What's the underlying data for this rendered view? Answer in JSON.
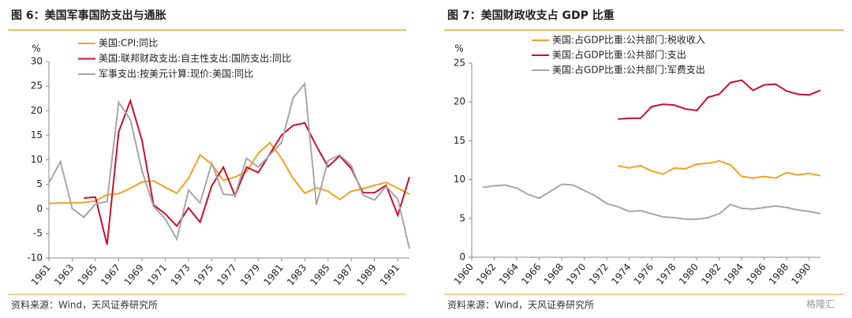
{
  "chart_data": [
    {
      "type": "line",
      "title": "图 6：美国军事国防支出与通胀",
      "y_unit": "%",
      "source": "资料来源：Wind，天风证券研究所",
      "x": [
        1961,
        1962,
        1963,
        1964,
        1965,
        1966,
        1967,
        1968,
        1969,
        1970,
        1971,
        1972,
        1973,
        1974,
        1975,
        1976,
        1977,
        1978,
        1979,
        1980,
        1981,
        1982,
        1983,
        1984,
        1985,
        1986,
        1987,
        1988,
        1989,
        1990,
        1991,
        1992
      ],
      "xlim": [
        1961,
        1992
      ],
      "xticks": [
        1961,
        1963,
        1965,
        1967,
        1969,
        1971,
        1973,
        1975,
        1977,
        1979,
        1981,
        1983,
        1985,
        1987,
        1989,
        1991
      ],
      "ylim": [
        -10,
        30
      ],
      "yticks": [
        -10,
        -5,
        0,
        5,
        10,
        15,
        20,
        25,
        30
      ],
      "legend": "top",
      "series": [
        {
          "name": "美国:CPI:同比",
          "color": "#f5a020",
          "values": [
            1.1,
            1.2,
            1.2,
            1.3,
            1.6,
            2.9,
            3.1,
            4.2,
            5.5,
            5.7,
            4.4,
            3.2,
            6.2,
            11.0,
            9.1,
            5.8,
            6.5,
            7.6,
            11.3,
            13.5,
            10.3,
            6.2,
            3.2,
            4.3,
            3.6,
            1.9,
            3.6,
            4.1,
            4.8,
            5.4,
            4.2,
            3.0
          ]
        },
        {
          "name": "美国:联邦财政支出:自主性支出:国防支出:同比",
          "color": "#c8102e",
          "values": [
            null,
            null,
            null,
            2.2,
            2.4,
            -7.3,
            15.7,
            22.0,
            14.0,
            0.8,
            -1.0,
            -3.5,
            0.2,
            -2.7,
            4.7,
            8.5,
            2.7,
            8.5,
            7.4,
            11.2,
            15.0,
            17.0,
            17.5,
            12.8,
            8.6,
            10.8,
            8.2,
            3.3,
            3.3,
            4.8,
            -1.3,
            6.5
          ]
        },
        {
          "name": "军事支出:按美元计算:现价:美国:同比",
          "color": "#a6a6a6",
          "values": [
            5.3,
            9.6,
            0.1,
            -1.7,
            1.0,
            1.5,
            21.7,
            18.2,
            7.8,
            0.5,
            -2.0,
            -6.2,
            3.8,
            1.2,
            9.3,
            3.0,
            2.8,
            10.3,
            8.5,
            11.0,
            13.5,
            22.6,
            25.5,
            0.8,
            9.8,
            11.0,
            8.8,
            2.8,
            1.8,
            4.6,
            2.0,
            -8.1
          ]
        }
      ]
    },
    {
      "type": "line",
      "title": "图 7：美国财政收支占 GDP 比重",
      "y_unit": "%",
      "source": "资料来源：Wind，天风证券研究所",
      "x": [
        1960,
        1961,
        1962,
        1963,
        1964,
        1965,
        1966,
        1967,
        1968,
        1969,
        1970,
        1971,
        1972,
        1973,
        1974,
        1975,
        1976,
        1977,
        1978,
        1979,
        1980,
        1981,
        1982,
        1983,
        1984,
        1985,
        1986,
        1987,
        1988,
        1989,
        1990,
        1991
      ],
      "xlim": [
        1960,
        1991
      ],
      "xticks": [
        1960,
        1962,
        1964,
        1966,
        1968,
        1970,
        1972,
        1974,
        1976,
        1978,
        1980,
        1982,
        1984,
        1986,
        1988,
        1990
      ],
      "ylim": [
        0,
        25
      ],
      "yticks": [
        0,
        5,
        10,
        15,
        20,
        25
      ],
      "legend": "top",
      "series": [
        {
          "name": "美国:占GDP比重:公共部门:税收收入",
          "color": "#f5a020",
          "values": [
            null,
            null,
            null,
            null,
            null,
            null,
            null,
            null,
            null,
            null,
            null,
            null,
            null,
            11.8,
            11.5,
            11.8,
            11.1,
            10.7,
            11.5,
            11.4,
            12.0,
            12.1,
            12.4,
            11.9,
            10.4,
            10.2,
            10.4,
            10.2,
            10.9,
            10.6,
            10.8,
            10.5
          ]
        },
        {
          "name": "美国:占GDP比重:公共部门:支出",
          "color": "#c8102e",
          "values": [
            null,
            null,
            null,
            null,
            null,
            null,
            null,
            null,
            null,
            null,
            null,
            null,
            null,
            17.8,
            17.9,
            17.9,
            19.4,
            19.7,
            19.6,
            19.1,
            18.9,
            20.6,
            21.0,
            22.5,
            22.8,
            21.5,
            22.2,
            22.3,
            21.4,
            21.0,
            20.9,
            21.5
          ]
        },
        {
          "name": "美国:占GDP比重:公共部门:军费支出",
          "color": "#a6a6a6",
          "values": [
            null,
            9.0,
            9.2,
            9.3,
            8.9,
            8.1,
            7.6,
            8.5,
            9.4,
            9.3,
            8.6,
            7.9,
            6.9,
            6.5,
            5.9,
            6.0,
            5.6,
            5.2,
            5.1,
            4.9,
            4.9,
            5.1,
            5.6,
            6.8,
            6.3,
            6.2,
            6.4,
            6.6,
            6.4,
            6.1,
            5.9,
            5.6
          ]
        }
      ]
    }
  ],
  "watermark": "格隆汇"
}
